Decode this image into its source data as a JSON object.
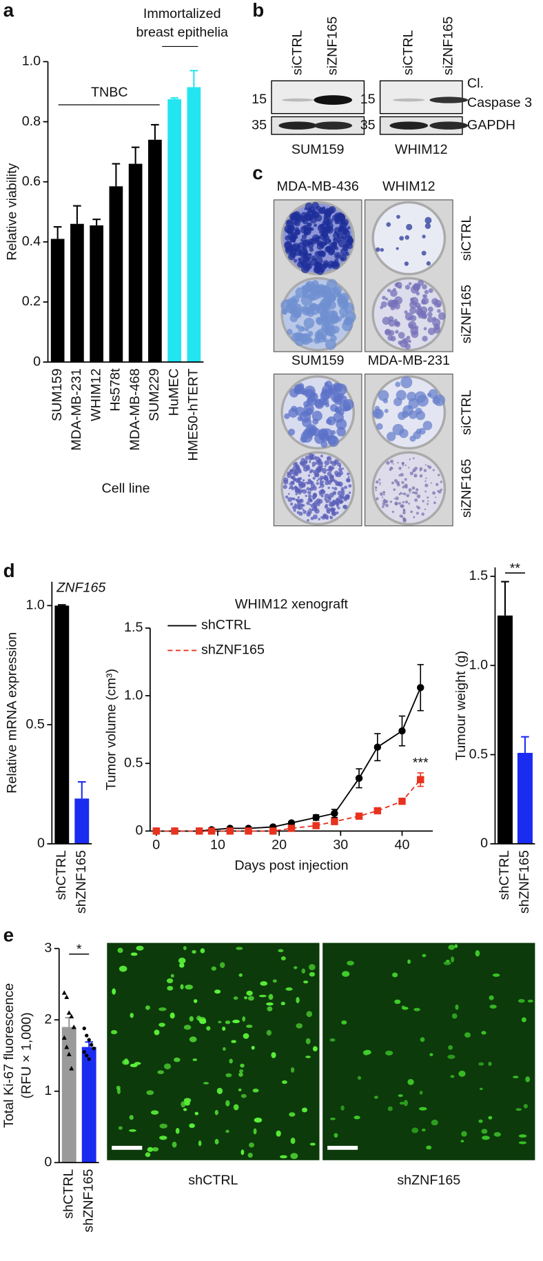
{
  "chart_data": [
    {
      "type": "bar",
      "ylabel": "Relative viability",
      "xlabel": "Cell line",
      "categories": [
        "SUM159",
        "MDA-MB-231",
        "WHIM12",
        "Hs578t",
        "MDA-MB-468",
        "SUM229",
        "HuMEC",
        "HME50-hTERT"
      ],
      "values": [
        0.41,
        0.46,
        0.455,
        0.585,
        0.66,
        0.74,
        0.875,
        0.915
      ],
      "errors": [
        0.04,
        0.06,
        0.02,
        0.075,
        0.055,
        0.05,
        0.004,
        0.055
      ],
      "colors": [
        "#000000",
        "#000000",
        "#000000",
        "#000000",
        "#000000",
        "#000000",
        "#22e5f0",
        "#22e5f0"
      ],
      "ylim": [
        0,
        1
      ],
      "yticks": [
        0,
        0.2,
        0.4,
        0.6,
        0.8,
        {
          "value": 1,
          "label": "1.0"
        }
      ],
      "annotations": [
        "TNBC",
        "Immortalized",
        "breast epithelia"
      ]
    },
    {
      "type": "bar",
      "title": "ZNF165",
      "ylabel": "Relative mRNA expression",
      "categories": [
        "shCTRL",
        "shZNF165"
      ],
      "values": [
        1,
        0.19
      ],
      "errors": [
        0.003,
        0.07
      ],
      "colors": [
        "#000000",
        "#1a2cf0"
      ],
      "ylim": [
        0,
        1.1
      ],
      "yticks": [
        0,
        0.5,
        {
          "value": 1,
          "label": "1.0"
        }
      ]
    },
    {
      "type": "line",
      "title": "WHIM12 xenograft",
      "xlabel": "Days post injection",
      "ylabel": "Tumor volume (cm³)",
      "x": [
        0,
        3,
        7,
        9,
        12,
        15,
        19,
        22,
        26,
        29,
        33,
        36,
        40,
        43
      ],
      "series": [
        {
          "name": "shCTRL",
          "color": "#000000",
          "dash": "solid",
          "values": [
            0,
            0,
            0,
            0.01,
            0.02,
            0.02,
            0.03,
            0.06,
            0.1,
            0.13,
            0.39,
            0.62,
            0.74,
            1.06
          ],
          "errors": [
            0.005,
            0.005,
            0.005,
            0.005,
            0.005,
            0.005,
            0.01,
            0.01,
            0.02,
            0.03,
            0.07,
            0.1,
            0.11,
            0.17
          ]
        },
        {
          "name": "shZNF165",
          "color": "#e8321e",
          "dash": "dashed",
          "values": [
            0,
            0,
            0,
            0,
            0,
            0,
            0,
            0.02,
            0.04,
            0.07,
            0.11,
            0.15,
            0.22,
            0.38
          ],
          "errors": [
            0.003,
            0.003,
            0.003,
            0.003,
            0.003,
            0.003,
            0.003,
            0.005,
            0.01,
            0.01,
            0.01,
            0.01,
            0.02,
            0.05
          ]
        }
      ],
      "xlim": [
        -1,
        45
      ],
      "xticks": [
        0,
        10,
        20,
        30,
        40
      ],
      "ylim": [
        0,
        1.5
      ],
      "yticks": [
        0,
        0.5,
        {
          "value": 1,
          "label": "1.0"
        },
        1.5
      ],
      "annotations": [
        "***"
      ]
    },
    {
      "type": "bar",
      "ylabel": "Tumour weight (g)",
      "categories": [
        "shCTRL",
        "shZNF165"
      ],
      "values": [
        1.28,
        0.51
      ],
      "errors": [
        0.19,
        0.09
      ],
      "colors": [
        "#000000",
        "#1a2cf0"
      ],
      "ylim": [
        0,
        1.55
      ],
      "yticks": [
        0,
        0.5,
        {
          "value": 1,
          "label": "1.0"
        },
        1.5
      ],
      "annotations": [
        "**"
      ]
    },
    {
      "type": "bar",
      "ylabel": [
        "Total Ki-67 fluorescence",
        "(RFU × 1,000)"
      ],
      "categories": [
        "shCTRL",
        "shZNF165"
      ],
      "values": [
        1.9,
        1.62
      ],
      "errors": [
        0.13,
        0.07
      ],
      "colors": [
        "#9a9a9a",
        "#1a2cf0"
      ],
      "points": [
        [
          2.38,
          2.32,
          2.1,
          2.05,
          1.9,
          1.75,
          1.62,
          1.52,
          1.32
        ],
        [
          1.88,
          1.78,
          1.72,
          1.65,
          1.6,
          1.55,
          1.5,
          1.45
        ]
      ],
      "ylim": [
        0,
        3
      ],
      "yticks": [
        0,
        1,
        2,
        3
      ],
      "annotations": [
        "*"
      ]
    }
  ],
  "panels": {
    "labels": [
      "a",
      "b",
      "c",
      "d",
      "e"
    ],
    "blot": {
      "lanes": [
        "siCTRL",
        "siZNF165",
        "siCTRL",
        "siZNF165"
      ],
      "markers": [
        "15",
        "35",
        "15",
        "35"
      ],
      "targets": [
        "Cl.",
        "Caspase 3",
        "GAPDH"
      ],
      "cell_lines": [
        "SUM159",
        "WHIM12"
      ]
    },
    "colony": {
      "cell_lines": [
        "MDA-MB-436",
        "WHIM12",
        "SUM159",
        "MDA-MB-231"
      ],
      "conditions": [
        "siCTRL",
        "siZNF165",
        "siCTRL",
        "siZNF165"
      ]
    },
    "fluorescence": {
      "labels": [
        "shCTRL",
        "shZNF165"
      ]
    }
  }
}
